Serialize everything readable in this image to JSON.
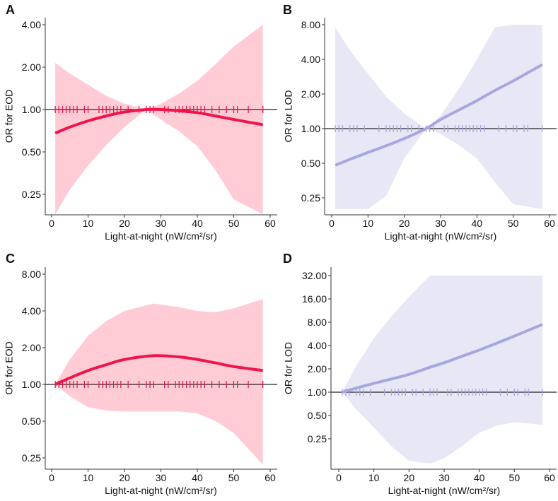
{
  "chart_data": [
    {
      "panel": "A",
      "type": "line",
      "ylabel": "OR for EOD",
      "xlabel": "Light-at-night (nW/cm²/sr)",
      "yscale": "log2",
      "ylim": [
        0.179,
        4.49
      ],
      "xlim": [
        -2,
        62
      ],
      "yticks": [
        "4.00",
        "2.00",
        "1.00",
        "0.50",
        "0.25"
      ],
      "xticks": [
        "0",
        "10",
        "20",
        "30",
        "40",
        "50",
        "60"
      ],
      "reference_line": 1.0,
      "line_color": "#f0144a",
      "band_color": "#ffccd6",
      "x": [
        1,
        5,
        10,
        15,
        20,
        26,
        30,
        35,
        40,
        45,
        50,
        58
      ],
      "or": [
        0.68,
        0.75,
        0.83,
        0.9,
        0.96,
        1.0,
        1.0,
        0.98,
        0.95,
        0.9,
        0.85,
        0.78
      ],
      "upper": [
        2.15,
        1.8,
        1.5,
        1.25,
        1.1,
        1.0,
        1.1,
        1.3,
        1.6,
        2.1,
        2.8,
        4.0
      ],
      "lower": [
        0.18,
        0.27,
        0.4,
        0.56,
        0.75,
        1.0,
        0.85,
        0.7,
        0.55,
        0.37,
        0.23,
        0.18
      ],
      "rug": [
        1,
        2,
        3,
        4,
        5,
        6,
        7,
        9,
        10,
        13,
        14,
        15,
        16,
        17,
        18,
        19,
        21,
        24,
        26,
        27,
        28,
        31,
        32,
        34,
        35,
        36,
        37,
        38,
        39,
        40,
        41,
        42,
        44,
        46,
        48,
        50,
        51,
        54,
        58
      ]
    },
    {
      "panel": "B",
      "type": "line",
      "ylabel": "OR for LOD",
      "xlabel": "Light-at-night (nW/cm²/sr)",
      "yscale": "log2",
      "ylim": [
        0.18,
        8.8
      ],
      "xlim": [
        -2,
        62
      ],
      "yticks": [
        "8.00",
        "4.00",
        "2.00",
        "1.00",
        "0.50",
        "0.25"
      ],
      "xticks": [
        "0",
        "10",
        "20",
        "30",
        "40",
        "50",
        "60"
      ],
      "reference_line": 1.0,
      "line_color": "#a7a7e0",
      "band_color": "#e7e7f6",
      "x": [
        1,
        5,
        10,
        15,
        20,
        26,
        30,
        35,
        40,
        45,
        50,
        58
      ],
      "or": [
        0.48,
        0.54,
        0.62,
        0.71,
        0.82,
        1.0,
        1.2,
        1.45,
        1.75,
        2.15,
        2.6,
        3.6
      ],
      "upper": [
        7.5,
        4.8,
        3.0,
        1.9,
        1.35,
        1.0,
        1.3,
        2.2,
        4.0,
        7.6,
        8.0,
        8.0
      ],
      "lower": [
        0.2,
        0.2,
        0.2,
        0.26,
        0.55,
        1.0,
        0.9,
        0.72,
        0.55,
        0.34,
        0.22,
        0.2
      ],
      "rug": [
        1,
        2,
        3,
        5,
        6,
        7,
        9,
        13,
        15,
        16,
        17,
        18,
        19,
        21,
        22,
        24,
        26,
        27,
        28,
        31,
        32,
        34,
        35,
        36,
        37,
        38,
        39,
        40,
        41,
        42,
        46,
        48,
        50,
        51,
        53,
        54,
        58
      ]
    },
    {
      "panel": "C",
      "type": "line",
      "ylabel": "OR for EOD",
      "xlabel": "Light-at-night (nW/cm²/sr)",
      "yscale": "log2",
      "ylim": [
        0.187,
        9.13
      ],
      "xlim": [
        -2,
        62
      ],
      "yticks": [
        "8.00",
        "4.00",
        "2.00",
        "1.00",
        "0.50",
        "0.25"
      ],
      "xticks": [
        "0",
        "10",
        "20",
        "30",
        "40",
        "50",
        "60"
      ],
      "reference_line": 1.0,
      "line_color": "#f0144a",
      "band_color": "#ffccd6",
      "x": [
        1,
        5,
        10,
        15,
        20,
        28,
        35,
        40,
        45,
        50,
        58
      ],
      "or": [
        1.0,
        1.13,
        1.3,
        1.45,
        1.6,
        1.72,
        1.68,
        1.6,
        1.5,
        1.4,
        1.3
      ],
      "upper": [
        1.0,
        1.6,
        2.5,
        3.3,
        4.0,
        4.6,
        4.3,
        4.0,
        3.9,
        4.2,
        5.0
      ],
      "lower": [
        1.0,
        0.8,
        0.65,
        0.61,
        0.6,
        0.6,
        0.6,
        0.58,
        0.5,
        0.4,
        0.22
      ],
      "rug": [
        1,
        2,
        3,
        4,
        5,
        6,
        7,
        9,
        10,
        13,
        14,
        15,
        16,
        17,
        18,
        19,
        21,
        24,
        26,
        27,
        28,
        31,
        32,
        34,
        35,
        36,
        37,
        38,
        39,
        40,
        41,
        42,
        44,
        46,
        48,
        50,
        51,
        54,
        58
      ]
    },
    {
      "panel": "D",
      "type": "line",
      "ylabel": "OR for LOD",
      "xlabel": "Light-at-night (nW/cm²/sr)",
      "yscale": "log2",
      "ylim": [
        0.11,
        41
      ],
      "xlim": [
        -2,
        62
      ],
      "yticks": [
        "32.00",
        "16.00",
        "8.00",
        "4.00",
        "2.00",
        "1.00",
        "0.50",
        "0.25"
      ],
      "xticks": [
        "0",
        "10",
        "20",
        "30",
        "40",
        "50",
        "60"
      ],
      "reference_line": 1.0,
      "line_color": "#a7a7e0",
      "band_color": "#e7e7f6",
      "x": [
        1,
        5,
        10,
        15,
        20,
        26,
        30,
        35,
        40,
        45,
        50,
        58
      ],
      "or": [
        1.0,
        1.13,
        1.3,
        1.48,
        1.7,
        2.1,
        2.4,
        2.9,
        3.5,
        4.3,
        5.3,
        7.5
      ],
      "upper": [
        1.0,
        2.2,
        5.0,
        9.5,
        17,
        32,
        32,
        32,
        32,
        32,
        32,
        32
      ],
      "lower": [
        1.0,
        0.6,
        0.35,
        0.2,
        0.13,
        0.12,
        0.14,
        0.2,
        0.3,
        0.37,
        0.41,
        0.38
      ],
      "rug": [
        1,
        2,
        3,
        5,
        6,
        7,
        9,
        13,
        15,
        16,
        17,
        18,
        19,
        21,
        22,
        24,
        26,
        27,
        28,
        31,
        32,
        34,
        35,
        36,
        37,
        38,
        39,
        40,
        41,
        42,
        46,
        48,
        50,
        51,
        53,
        54,
        58
      ]
    }
  ]
}
